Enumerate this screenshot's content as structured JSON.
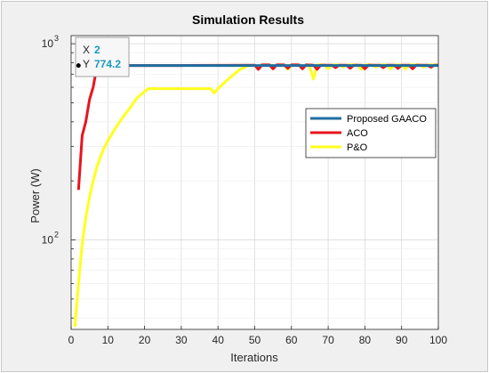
{
  "chart_data": {
    "type": "line",
    "title": "Simulation Results",
    "xlabel": "Iterations",
    "ylabel": "Power (W)",
    "xlim": [
      0,
      100
    ],
    "ylim": [
      35,
      1100
    ],
    "yscale": "log",
    "grid": true,
    "legend_position": "right",
    "x_ticks": [
      0,
      10,
      20,
      30,
      40,
      50,
      60,
      70,
      80,
      90,
      100
    ],
    "y_ticks": [
      {
        "value": 100,
        "base": "10",
        "exp": "2"
      },
      {
        "value": 1000,
        "base": "10",
        "exp": "3"
      }
    ],
    "series": [
      {
        "name": "Proposed GAACO",
        "color": "#1f6ea0",
        "points": [
          [
            2,
            774.2
          ],
          [
            10,
            774.2
          ],
          [
            20,
            774.2
          ],
          [
            30,
            774.2
          ],
          [
            40,
            774.2
          ],
          [
            50,
            774.2
          ],
          [
            60,
            774.2
          ],
          [
            70,
            774.2
          ],
          [
            80,
            774.2
          ],
          [
            90,
            774.2
          ],
          [
            100,
            774.2
          ]
        ]
      },
      {
        "name": "ACO",
        "color": "#e8141e",
        "points": [
          [
            2,
            180
          ],
          [
            3,
            340
          ],
          [
            4,
            400
          ],
          [
            5,
            520
          ],
          [
            6,
            600
          ],
          [
            7,
            760
          ],
          [
            8,
            760
          ],
          [
            9,
            760
          ],
          [
            10,
            762
          ],
          [
            11,
            772
          ],
          [
            12,
            774
          ],
          [
            15,
            774
          ],
          [
            30,
            774
          ],
          [
            31,
            775
          ],
          [
            40,
            776
          ],
          [
            50,
            778
          ],
          [
            51,
            740
          ],
          [
            52,
            780
          ],
          [
            54,
            780
          ],
          [
            55,
            745
          ],
          [
            56,
            780
          ],
          [
            58,
            780
          ],
          [
            59,
            750
          ],
          [
            60,
            780
          ],
          [
            62,
            780
          ],
          [
            63,
            745
          ],
          [
            64,
            780
          ],
          [
            66,
            778
          ],
          [
            67,
            740
          ],
          [
            68,
            778
          ],
          [
            71,
            778
          ],
          [
            72,
            755
          ],
          [
            73,
            778
          ],
          [
            75,
            778
          ],
          [
            76,
            750
          ],
          [
            77,
            778
          ],
          [
            79,
            778
          ],
          [
            80,
            745
          ],
          [
            81,
            778
          ],
          [
            84,
            778
          ],
          [
            85,
            755
          ],
          [
            86,
            778
          ],
          [
            88,
            778
          ],
          [
            89,
            748
          ],
          [
            90,
            778
          ],
          [
            92,
            778
          ],
          [
            93,
            745
          ],
          [
            94,
            778
          ],
          [
            97,
            778
          ],
          [
            98,
            760
          ],
          [
            99,
            778
          ],
          [
            100,
            778
          ]
        ]
      },
      {
        "name": "P&O",
        "color": "#ffff1e",
        "points": [
          [
            1,
            36
          ],
          [
            2,
            60
          ],
          [
            3,
            95
          ],
          [
            4,
            130
          ],
          [
            5,
            165
          ],
          [
            6,
            200
          ],
          [
            7,
            235
          ],
          [
            8,
            265
          ],
          [
            9,
            295
          ],
          [
            10,
            320
          ],
          [
            12,
            370
          ],
          [
            14,
            420
          ],
          [
            16,
            470
          ],
          [
            18,
            530
          ],
          [
            20,
            570
          ],
          [
            21,
            590
          ],
          [
            25,
            590
          ],
          [
            30,
            590
          ],
          [
            35,
            590
          ],
          [
            38,
            590
          ],
          [
            39,
            560
          ],
          [
            40,
            590
          ],
          [
            42,
            640
          ],
          [
            44,
            690
          ],
          [
            46,
            740
          ],
          [
            48,
            770
          ],
          [
            50,
            778
          ],
          [
            51,
            760
          ],
          [
            52,
            780
          ],
          [
            54,
            780
          ],
          [
            55,
            745
          ],
          [
            56,
            780
          ],
          [
            58,
            780
          ],
          [
            59,
            740
          ],
          [
            60,
            780
          ],
          [
            62,
            780
          ],
          [
            63,
            760
          ],
          [
            64,
            780
          ],
          [
            65,
            760
          ],
          [
            66,
            660
          ],
          [
            67,
            780
          ],
          [
            69,
            780
          ],
          [
            70,
            745
          ],
          [
            71,
            780
          ],
          [
            73,
            780
          ],
          [
            74,
            760
          ],
          [
            75,
            780
          ],
          [
            78,
            780
          ],
          [
            79,
            740
          ],
          [
            80,
            780
          ],
          [
            82,
            780
          ],
          [
            83,
            760
          ],
          [
            84,
            780
          ],
          [
            86,
            780
          ],
          [
            87,
            745
          ],
          [
            88,
            780
          ],
          [
            90,
            780
          ],
          [
            91,
            745
          ],
          [
            92,
            780
          ],
          [
            95,
            780
          ],
          [
            96,
            760
          ],
          [
            97,
            780
          ],
          [
            100,
            780
          ]
        ]
      }
    ],
    "datatip": {
      "x_label": "X",
      "x_value": "2",
      "y_label": "Y",
      "y_value": "774.2",
      "x": 2,
      "y": 774.2
    }
  }
}
